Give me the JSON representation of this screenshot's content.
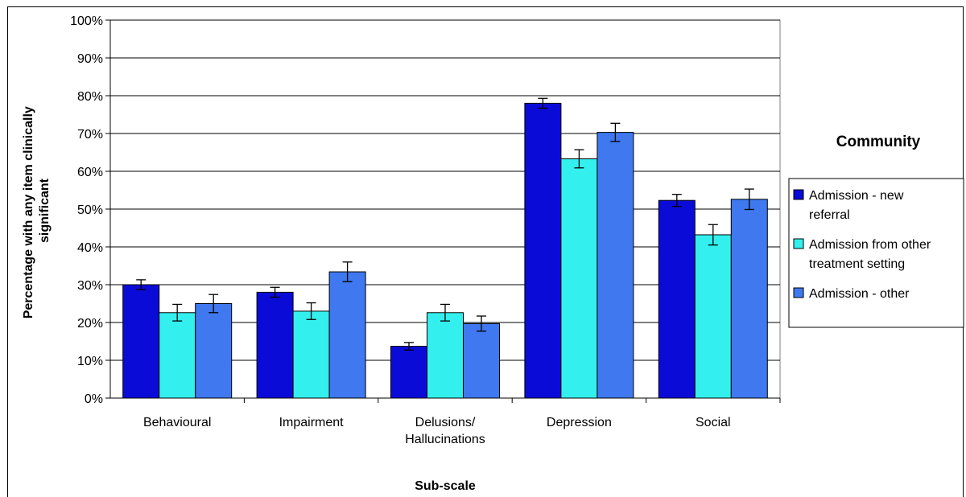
{
  "chart_data": {
    "type": "bar",
    "categories": [
      [
        "Behavioural"
      ],
      [
        "Impairment"
      ],
      [
        "Delusions/",
        "Hallucinations"
      ],
      [
        "Depression"
      ],
      [
        "Social"
      ]
    ],
    "series": [
      {
        "name": "Admission - new referral",
        "name_lines": [
          "Admission - new",
          "referral"
        ],
        "color": "#0b0bd8",
        "values": [
          30,
          28,
          13.7,
          78,
          52.3
        ],
        "err": [
          1.3,
          1.3,
          1.0,
          1.3,
          1.6
        ]
      },
      {
        "name": "Admission from other treatment setting",
        "name_lines": [
          "Admission from other",
          "treatment setting"
        ],
        "color": "#33f0ee",
        "values": [
          22.6,
          23,
          22.6,
          63.3,
          43.2
        ],
        "err": [
          2.2,
          2.2,
          2.2,
          2.4,
          2.7
        ]
      },
      {
        "name": "Admission - other",
        "name_lines": [
          "Admission - other"
        ],
        "color": "#3f78ef",
        "values": [
          25,
          33.4,
          19.7,
          70.3,
          52.6
        ],
        "err": [
          2.4,
          2.6,
          2.0,
          2.4,
          2.7
        ]
      }
    ],
    "ylim": [
      0,
      100
    ],
    "yticks": [
      "0%",
      "10%",
      "20%",
      "30%",
      "40%",
      "50%",
      "60%",
      "70%",
      "80%",
      "90%",
      "100%"
    ],
    "ylabel_lines": [
      "Percentage with any item clinically",
      "significant"
    ],
    "xlabel": "Sub-scale",
    "legend_title": "Community",
    "legend_position": "right",
    "grid": true,
    "plot_background": "#ffffff"
  }
}
